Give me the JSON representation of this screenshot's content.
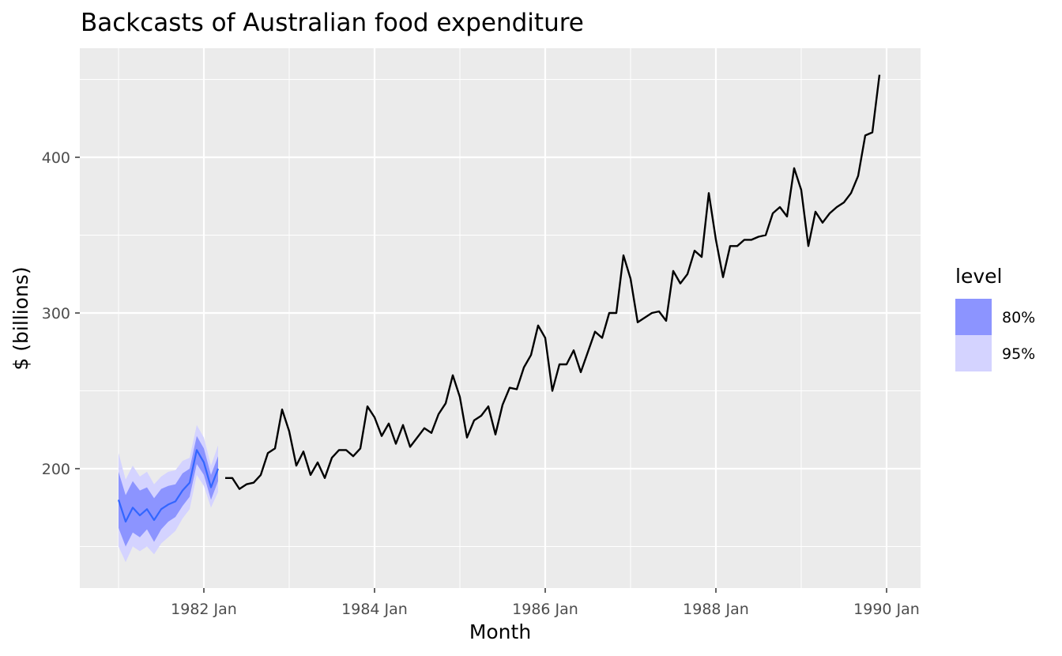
{
  "chart_data": {
    "type": "line",
    "title": "Backcasts of Australian food expenditure",
    "xlabel": "Month",
    "ylabel": "$ (billions)",
    "x_ticks": [
      "1982 Jan",
      "1984 Jan",
      "1986 Jan",
      "1988 Jan",
      "1990 Jan"
    ],
    "y_ticks": [
      "200",
      "300",
      "400"
    ],
    "grid": true,
    "legend": {
      "title": "level",
      "placement": "right",
      "entries": [
        {
          "label": "80%",
          "color": "#8c94ff"
        },
        {
          "label": "95%",
          "color": "#d4d3ff"
        }
      ]
    },
    "colors": {
      "observed": "#000000",
      "backcast_mean": "#3366ff",
      "band80": "#8c94ff",
      "band95": "#d4d3ff",
      "panel": "#ebebeb",
      "grid": "#ffffff"
    },
    "series": [
      {
        "role": "observed",
        "x": [
          "1982 Apr",
          "1982 May",
          "1982 Jun",
          "1982 Jul",
          "1982 Aug",
          "1982 Sep",
          "1982 Oct",
          "1982 Nov",
          "1982 Dec",
          "1983 Jan",
          "1983 Feb",
          "1983 Mar",
          "1983 Apr",
          "1983 May",
          "1983 Jun",
          "1983 Jul",
          "1983 Aug",
          "1983 Sep",
          "1983 Oct",
          "1983 Nov",
          "1983 Dec",
          "1984 Jan",
          "1984 Feb",
          "1984 Mar",
          "1984 Apr",
          "1984 May",
          "1984 Jun",
          "1984 Jul",
          "1984 Aug",
          "1984 Sep",
          "1984 Oct",
          "1984 Nov",
          "1984 Dec",
          "1985 Jan",
          "1985 Feb",
          "1985 Mar",
          "1985 Apr",
          "1985 May",
          "1985 Jun",
          "1985 Jul",
          "1985 Aug",
          "1985 Sep",
          "1985 Oct",
          "1985 Nov",
          "1985 Dec",
          "1986 Jan",
          "1986 Feb",
          "1986 Mar",
          "1986 Apr",
          "1986 May",
          "1986 Jun",
          "1986 Jul",
          "1986 Aug",
          "1986 Sep",
          "1986 Oct",
          "1986 Nov",
          "1986 Dec",
          "1987 Jan",
          "1987 Feb",
          "1987 Mar",
          "1987 Apr",
          "1987 May",
          "1987 Jun",
          "1987 Jul",
          "1987 Aug",
          "1987 Sep",
          "1987 Oct",
          "1987 Nov",
          "1987 Dec",
          "1988 Jan",
          "1988 Feb",
          "1988 Mar",
          "1988 Apr",
          "1988 May",
          "1988 Jun",
          "1988 Jul",
          "1988 Aug",
          "1988 Sep",
          "1988 Oct",
          "1988 Nov",
          "1988 Dec",
          "1989 Jan",
          "1989 Feb",
          "1989 Mar",
          "1989 Apr",
          "1989 May",
          "1989 Jun",
          "1989 Jul",
          "1989 Aug",
          "1989 Sep",
          "1989 Oct",
          "1989 Nov",
          "1989 Dec"
        ],
        "y": [
          194,
          194,
          187,
          190,
          191,
          196,
          210,
          213,
          238,
          224,
          202,
          211,
          196,
          204,
          194,
          207,
          212,
          212,
          208,
          213,
          240,
          233,
          221,
          229,
          216,
          228,
          214,
          220,
          226,
          223,
          235,
          242,
          260,
          246,
          220,
          231,
          234,
          240,
          222,
          241,
          252,
          251,
          265,
          273,
          292,
          284,
          250,
          267,
          267,
          276,
          262,
          275,
          288,
          284,
          300,
          300,
          337,
          322,
          294,
          297,
          300,
          301,
          295,
          327,
          319,
          325,
          340,
          336,
          377,
          347,
          323,
          343,
          343,
          347,
          347,
          349,
          350,
          364,
          368,
          362,
          393,
          379,
          343,
          365,
          358,
          364,
          368,
          371,
          377,
          388,
          414,
          416,
          453
        ]
      },
      {
        "role": "backcast_mean",
        "x": [
          "1981 Jan",
          "1981 Feb",
          "1981 Mar",
          "1981 Apr",
          "1981 May",
          "1981 Jun",
          "1981 Jul",
          "1981 Aug",
          "1981 Sep",
          "1981 Oct",
          "1981 Nov",
          "1981 Dec",
          "1982 Jan",
          "1982 Feb",
          "1982 Mar"
        ],
        "y": [
          180,
          166,
          175,
          170,
          174,
          167,
          174,
          177,
          179,
          186,
          191,
          212,
          204,
          188,
          200
        ],
        "lo80": [
          162,
          150,
          159,
          156,
          161,
          153,
          161,
          166,
          169,
          176,
          182,
          203,
          196,
          180,
          192
        ],
        "hi80": [
          198,
          183,
          192,
          186,
          188,
          181,
          187,
          189,
          190,
          197,
          200,
          221,
          213,
          196,
          208
        ],
        "lo95": [
          150,
          140,
          150,
          147,
          150,
          145,
          152,
          156,
          160,
          168,
          174,
          196,
          189,
          175,
          185
        ],
        "hi95": [
          210,
          193,
          202,
          195,
          198,
          190,
          195,
          198,
          199,
          205,
          207,
          228,
          220,
          202,
          215
        ]
      }
    ]
  }
}
